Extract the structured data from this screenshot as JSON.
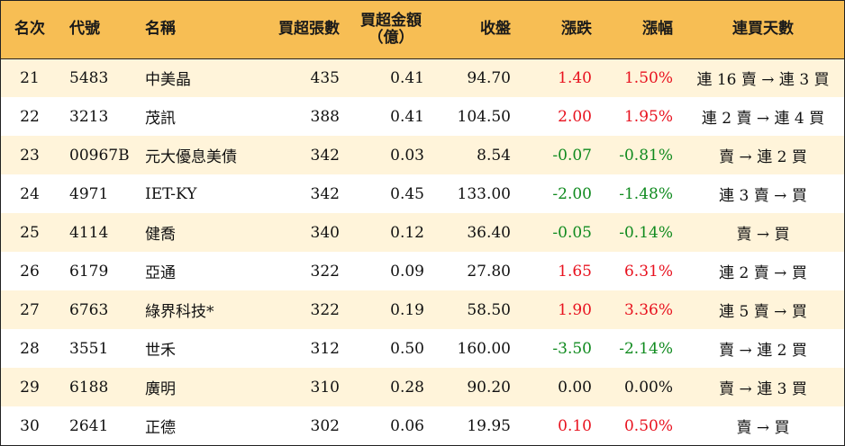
{
  "headers": {
    "rank": "名次",
    "code": "代號",
    "name": "名稱",
    "lots": "買超張數",
    "amount_line1": "買超金額",
    "amount_line2": "（億）",
    "close": "收盤",
    "change": "漲跌",
    "pct": "漲幅",
    "days": "連買天數"
  },
  "colors": {
    "header_bg": "#f7be54",
    "stripe_bg": "#fff4da",
    "up": "#e8121f",
    "down": "#0f8a1e"
  },
  "rows": [
    {
      "rank": "21",
      "code": "5483",
      "name": "中美晶",
      "lots": "435",
      "amount": "0.41",
      "close": "94.70",
      "change": "1.40",
      "pct": "1.50%",
      "days": "連 16 賣 → 連 3 買",
      "dir": "up"
    },
    {
      "rank": "22",
      "code": "3213",
      "name": "茂訊",
      "lots": "388",
      "amount": "0.41",
      "close": "104.50",
      "change": "2.00",
      "pct": "1.95%",
      "days": "連 2 賣 → 連 4 買",
      "dir": "up"
    },
    {
      "rank": "23",
      "code": "00967B",
      "name": "元大優息美債",
      "lots": "342",
      "amount": "0.03",
      "close": "8.54",
      "change": "-0.07",
      "pct": "-0.81%",
      "days": "賣 → 連 2 買",
      "dir": "down"
    },
    {
      "rank": "24",
      "code": "4971",
      "name": "IET-KY",
      "lots": "342",
      "amount": "0.45",
      "close": "133.00",
      "change": "-2.00",
      "pct": "-1.48%",
      "days": "連 3 賣 → 買",
      "dir": "down"
    },
    {
      "rank": "25",
      "code": "4114",
      "name": "健喬",
      "lots": "340",
      "amount": "0.12",
      "close": "36.40",
      "change": "-0.05",
      "pct": "-0.14%",
      "days": "賣 → 買",
      "dir": "down"
    },
    {
      "rank": "26",
      "code": "6179",
      "name": "亞通",
      "lots": "322",
      "amount": "0.09",
      "close": "27.80",
      "change": "1.65",
      "pct": "6.31%",
      "days": "連 2 賣 → 買",
      "dir": "up"
    },
    {
      "rank": "27",
      "code": "6763",
      "name": "綠界科技*",
      "lots": "322",
      "amount": "0.19",
      "close": "58.50",
      "change": "1.90",
      "pct": "3.36%",
      "days": "連 5 賣 → 買",
      "dir": "up"
    },
    {
      "rank": "28",
      "code": "3551",
      "name": "世禾",
      "lots": "312",
      "amount": "0.50",
      "close": "160.00",
      "change": "-3.50",
      "pct": "-2.14%",
      "days": "賣 → 連 2 買",
      "dir": "down"
    },
    {
      "rank": "29",
      "code": "6188",
      "name": "廣明",
      "lots": "310",
      "amount": "0.28",
      "close": "90.20",
      "change": "0.00",
      "pct": "0.00%",
      "days": "賣 → 連 3 買",
      "dir": "flat"
    },
    {
      "rank": "30",
      "code": "2641",
      "name": "正德",
      "lots": "302",
      "amount": "0.06",
      "close": "19.95",
      "change": "0.10",
      "pct": "0.50%",
      "days": "賣 → 買",
      "dir": "up"
    }
  ]
}
